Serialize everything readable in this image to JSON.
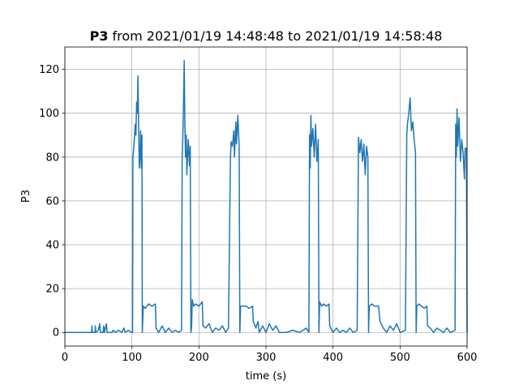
{
  "chart_data": {
    "type": "line",
    "title": {
      "bold": "P3",
      "rest": "from 2021/01/19 14:48:48 to 2021/01/19 14:58:48"
    },
    "xlabel": "time (s)",
    "ylabel": "P3",
    "color": "#1f77b4",
    "grid": true,
    "xlim": [
      0,
      600
    ],
    "xticks": [
      0,
      100,
      200,
      300,
      400,
      500,
      600
    ],
    "ylim": [
      -6.2,
      130.2
    ],
    "yticks": [
      0,
      20,
      40,
      60,
      80,
      100,
      120
    ],
    "x": [
      0,
      40,
      40.5,
      41,
      45,
      45.5,
      46,
      50,
      52,
      53,
      57,
      58,
      59,
      62,
      63,
      70,
      72,
      75,
      80,
      85,
      88,
      90,
      95,
      99,
      101,
      101.5,
      103,
      105,
      106,
      107,
      108,
      109,
      110,
      111,
      112,
      113,
      114,
      115,
      115.5,
      117,
      120,
      125,
      130,
      135,
      136,
      140,
      145,
      150,
      155,
      160,
      165,
      170,
      174,
      175,
      176,
      177,
      178,
      179,
      180,
      181,
      182,
      184,
      186,
      187,
      188,
      189,
      190,
      192,
      195,
      200,
      205,
      206,
      210,
      215,
      220,
      225,
      230,
      235,
      240,
      244,
      247,
      248,
      250,
      252,
      253,
      255,
      256,
      258,
      260,
      261,
      262,
      265,
      270,
      275,
      280,
      281,
      285,
      288,
      290,
      295,
      300,
      305,
      310,
      315,
      320,
      330,
      340,
      350,
      360,
      364,
      365,
      366,
      367,
      368,
      370,
      372,
      374,
      376,
      378,
      379,
      380,
      383,
      386,
      390,
      394,
      395,
      400,
      405,
      410,
      415,
      420,
      425,
      430,
      436,
      438,
      440,
      442,
      444,
      446,
      448,
      450,
      452,
      453,
      454,
      458,
      462,
      468,
      470,
      475,
      480,
      485,
      490,
      495,
      500,
      508,
      510,
      511,
      513,
      515,
      517,
      519,
      521,
      523,
      524,
      525,
      528,
      532,
      536,
      540,
      541,
      545,
      550,
      555,
      560,
      565,
      570,
      575,
      582,
      583,
      584,
      585,
      586,
      588,
      590,
      592,
      594,
      596,
      597,
      599,
      600
    ],
    "values": [
      0,
      0,
      3,
      0,
      0,
      3,
      0,
      1,
      4,
      0,
      0,
      3,
      0,
      4,
      0,
      0,
      1,
      0,
      1,
      0,
      2,
      0,
      1,
      0,
      0,
      80,
      85,
      95,
      90,
      105,
      100,
      117,
      95,
      75,
      80,
      92,
      75,
      90,
      0,
      12,
      11,
      13,
      12,
      13,
      2,
      0,
      3,
      0,
      2,
      0,
      1,
      0,
      1,
      80,
      90,
      105,
      124,
      95,
      80,
      90,
      72,
      88,
      76,
      85,
      0,
      2,
      15,
      12,
      13,
      12,
      14,
      3,
      2,
      4,
      0,
      2,
      1,
      3,
      0,
      2,
      80,
      87,
      85,
      92,
      80,
      96,
      86,
      99,
      85,
      0,
      12,
      12,
      12,
      11,
      12,
      5,
      2,
      5,
      0,
      3,
      0,
      4,
      1,
      3,
      0,
      0,
      1,
      0,
      2,
      0,
      90,
      75,
      99,
      85,
      93,
      80,
      95,
      78,
      88,
      0,
      14,
      12,
      13,
      12,
      13,
      3,
      0,
      2,
      0,
      1,
      0,
      2,
      0,
      1,
      89,
      82,
      88,
      78,
      86,
      72,
      85,
      80,
      0,
      12,
      13,
      12,
      12,
      5,
      2,
      0,
      3,
      1,
      4,
      0,
      1,
      90,
      95,
      100,
      107,
      92,
      96,
      88,
      82,
      0,
      12,
      13,
      12,
      11,
      12,
      3,
      2,
      0,
      2,
      1,
      0,
      2,
      0,
      1,
      95,
      80,
      102,
      85,
      98,
      78,
      88,
      82,
      70,
      84,
      84,
      0
    ]
  }
}
